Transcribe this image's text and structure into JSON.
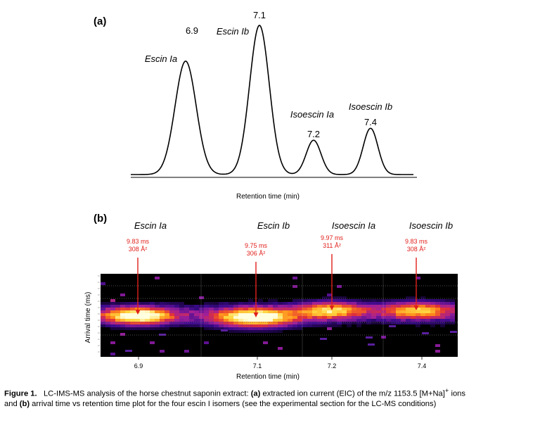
{
  "figure_number": "Figure 1.",
  "caption": {
    "line1_a": "LC-IMS-MS analysis of the horse chestnut saponin extract: ",
    "line1_b": "(a)",
    "line1_c": " extracted ion current (EIC) of the m/z 1153.5 [M+Na]",
    "line1_sup": "+",
    "line1_d": " ions",
    "line2_a": "and ",
    "line2_b": "(b)",
    "line2_c": " arrival time vs retention time plot for the four escin I isomers (see the experimental section for the LC-MS conditions)"
  },
  "chart_data": [
    {
      "panel": "(a)",
      "type": "line",
      "xlabel": "Retention time (min)",
      "ylabel": "",
      "line_color": "#000000",
      "peaks": [
        {
          "name": "Escin Ia",
          "retention_time": "6.9",
          "x": 6.9,
          "height": 0.76,
          "width": 0.045
        },
        {
          "name": "Escin Ib",
          "retention_time": "7.1",
          "x": 7.1,
          "height": 1.0,
          "width": 0.043
        },
        {
          "name": "Isoescin Ia",
          "retention_time": "7.2",
          "x": 7.2,
          "height": 0.23,
          "width": 0.032
        },
        {
          "name": "Isoescin Ib",
          "retention_time": "7.4",
          "x": 7.4,
          "height": 0.31,
          "width": 0.033
        }
      ],
      "xlim": [
        6.7,
        7.55
      ],
      "ylim": [
        0,
        1.05
      ]
    },
    {
      "panel": "(b)",
      "type": "heatmap",
      "xlabel": "Retention time (min)",
      "ylabel": "Arrival time (ms)",
      "x_ticks": [
        "6.9",
        "7.1",
        "7.2",
        "7.4"
      ],
      "background": "#000000",
      "colormap": [
        "#000000",
        "#3a0a8c",
        "#a0209a",
        "#e0303a",
        "#ff8a1a",
        "#ffd640",
        "#ffffe0"
      ],
      "annotation_color": "#e0201b",
      "spots": [
        {
          "name": "Escin Ia",
          "arrival_time": "9.83 ms",
          "ccs": "308 Å²",
          "intensity": 1.0
        },
        {
          "name": "Escin Ib",
          "arrival_time": "9.75 ms",
          "ccs": "306 Å²",
          "intensity": 1.0
        },
        {
          "name": "Isoescin Ia",
          "arrival_time": "9.97 ms",
          "ccs": "311 Å²",
          "intensity": 0.72
        },
        {
          "name": "Isoescin Ib",
          "arrival_time": "9.83 ms",
          "ccs": "308 Å²",
          "intensity": 0.66
        }
      ]
    }
  ]
}
